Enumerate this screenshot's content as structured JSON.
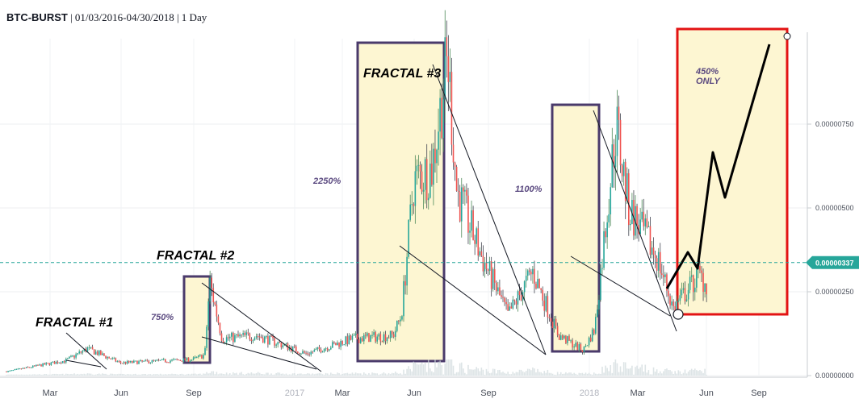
{
  "header": {
    "symbol": "BTC-BURST",
    "details": " | 01/03/2016-04/30/2018 | 1 Day"
  },
  "colors": {
    "up": "#26a69a",
    "down": "#ef5350",
    "candle_dark": "#434651",
    "fractal_box_stroke": "#4a3a6b",
    "fractal_box_fill": "#fdf6d2",
    "projection_box_stroke": "#e31313",
    "current_price_line": "#26a69a",
    "percent_text": "#5b4a80"
  },
  "chart_data": {
    "type": "candlestick",
    "x_ticks": [
      "Mar",
      "Jun",
      "Sep",
      "2017",
      "Mar",
      "Jun",
      "Sep",
      "2018",
      "Mar",
      "Jun",
      "Sep"
    ],
    "y_ticks": [
      "0.00000750",
      "0.00000500",
      "0.00000250",
      "0.00000000"
    ],
    "y_tick_values": [
      7.5e-06,
      5e-06,
      2.5e-06,
      0
    ],
    "current_price": {
      "label": "0.00000337",
      "value": 3.37e-06
    },
    "price_path": [
      {
        "date": "2016-01-03",
        "close": 1.2e-07
      },
      {
        "date": "2016-03-15",
        "close": 4.5e-07
      },
      {
        "date": "2016-04-10",
        "close": 8e-07
      },
      {
        "date": "2016-05-20",
        "close": 3.8e-07
      },
      {
        "date": "2016-08-15",
        "close": 4.8e-07
      },
      {
        "date": "2016-08-30",
        "close": 6.2e-07
      },
      {
        "date": "2016-09-05",
        "close": 2.8e-06
      },
      {
        "date": "2016-09-20",
        "close": 1.1e-06
      },
      {
        "date": "2016-11-01",
        "close": 1.2e-06
      },
      {
        "date": "2016-12-31",
        "close": 6.5e-07
      },
      {
        "date": "2017-02-25",
        "close": 1.1e-06
      },
      {
        "date": "2017-04-15",
        "close": 1.2e-06
      },
      {
        "date": "2017-04-25",
        "close": 1.8e-06
      },
      {
        "date": "2017-05-10",
        "close": 5.8e-06
      },
      {
        "date": "2017-06-01",
        "close": 6.2e-06
      },
      {
        "date": "2017-06-20",
        "close": 9.5e-06
      },
      {
        "date": "2017-07-01",
        "close": 5.5e-06
      },
      {
        "date": "2017-08-01",
        "close": 3.5e-06
      },
      {
        "date": "2017-09-01",
        "close": 1.8e-06
      },
      {
        "date": "2017-10-01",
        "close": 3.1e-06
      },
      {
        "date": "2017-11-01",
        "close": 1.2e-06
      },
      {
        "date": "2017-12-01",
        "close": 7.5e-07
      },
      {
        "date": "2017-12-15",
        "close": 1.4e-06
      },
      {
        "date": "2017-12-31",
        "close": 5.2e-06
      },
      {
        "date": "2018-01-10",
        "close": 7.5e-06
      },
      {
        "date": "2018-01-25",
        "close": 5e-06
      },
      {
        "date": "2018-03-01",
        "close": 3.5e-06
      },
      {
        "date": "2018-03-20",
        "close": 2e-06
      },
      {
        "date": "2018-04-20",
        "close": 3e-06
      },
      {
        "date": "2018-04-30",
        "close": 2.7e-06
      }
    ],
    "fractals": [
      {
        "label": "FRACTAL #1",
        "percent": ""
      },
      {
        "label": "FRACTAL #2",
        "percent": "750%"
      },
      {
        "label": "FRACTAL #3",
        "percent": "2250%"
      },
      {
        "label": "",
        "percent": "1100%"
      }
    ],
    "projection": {
      "percent": "450%",
      "note": "ONLY"
    }
  }
}
